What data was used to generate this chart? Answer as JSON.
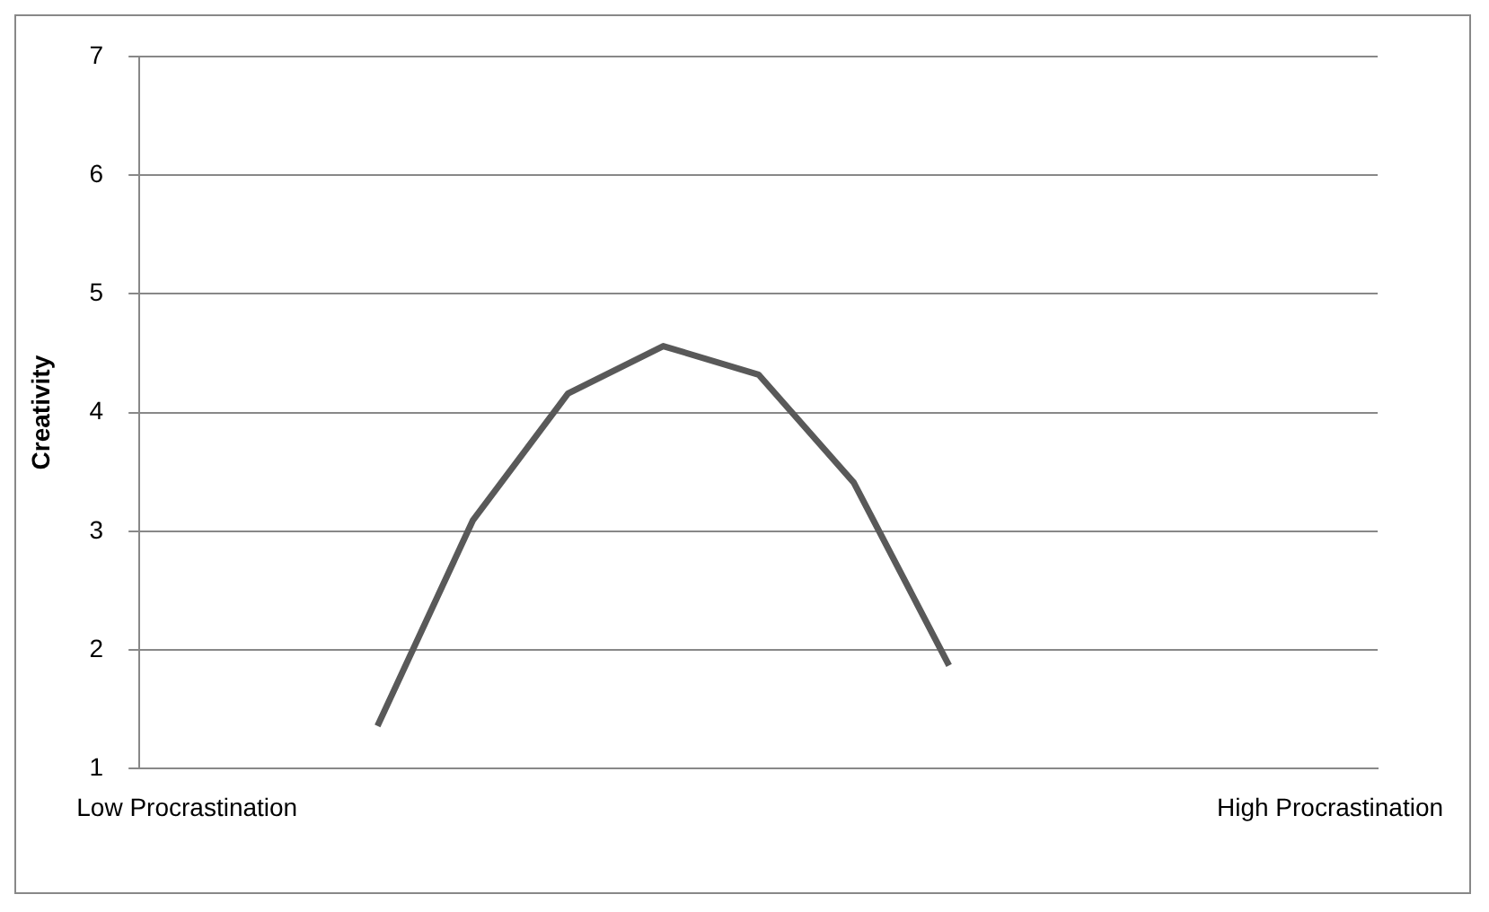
{
  "chart_data": {
    "type": "line",
    "ylabel": "Creativity",
    "categories": [
      "Low Procrastination",
      null,
      null,
      null,
      null,
      null,
      null,
      null,
      null,
      null,
      null,
      null,
      "High Procrastination"
    ],
    "series": [
      {
        "color": "#595959",
        "values": [
          null,
          null,
          1.36,
          3.09,
          4.16,
          4.56,
          4.32,
          3.41,
          1.87,
          null,
          null,
          null,
          null
        ]
      }
    ],
    "ylim": [
      1,
      7
    ],
    "yticks": [
      1,
      2,
      3,
      4,
      5,
      6,
      7
    ],
    "grid": "y",
    "legend": false,
    "marker": "none",
    "line_style": "solid"
  }
}
